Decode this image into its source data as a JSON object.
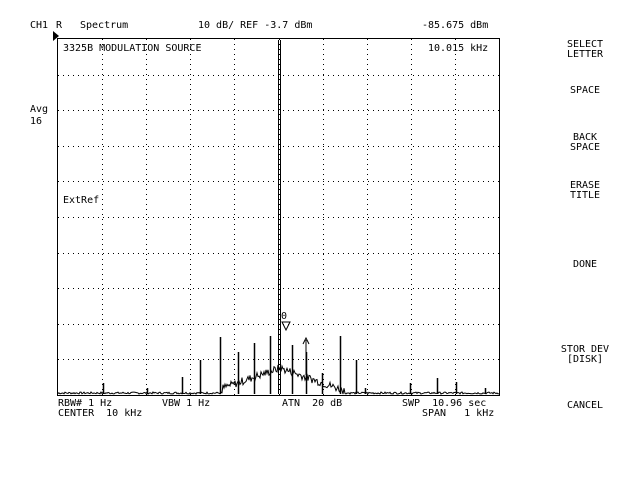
{
  "header": {
    "channel": "CH1",
    "trace": "R",
    "measurement": "Spectrum",
    "scale_ref": "10 dB/ REF -3.7 dBm",
    "marker_amplitude": "-85.675 dBm"
  },
  "title": "3325B MODULATION SOURCE",
  "marker_frequency": "10.015 kHz",
  "left_labels": {
    "avg_label": "Avg",
    "avg_count": "16",
    "ext_ref": "ExtRef"
  },
  "marker_label": "0",
  "footer": {
    "rbw": "RBW# 1 Hz",
    "vbw": "VBW 1 Hz",
    "atn": "ATN  20 dB",
    "swp": "SWP  10.96 sec",
    "center": "CENTER  10 kHz",
    "span": "SPAN   1 kHz"
  },
  "softkeys": [
    {
      "line1": "SELECT",
      "line2": "LETTER"
    },
    {
      "line1": "SPACE",
      "line2": ""
    },
    {
      "line1": "BACK",
      "line2": "SPACE"
    },
    {
      "line1": "ERASE",
      "line2": "TITLE"
    },
    {
      "line1": "DONE",
      "line2": ""
    },
    {
      "line1": "STOR DEV",
      "line2": "[DISK]"
    },
    {
      "line1": "CANCEL",
      "line2": ""
    }
  ],
  "colors": {
    "foreground": "#000000",
    "background": "#ffffff",
    "grid": "#000000"
  }
}
